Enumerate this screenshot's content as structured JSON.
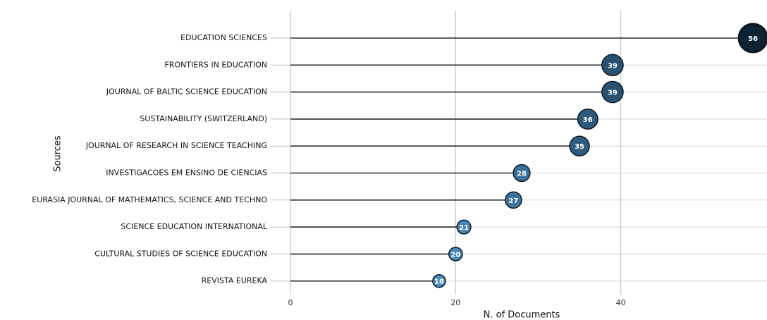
{
  "chart_data": {
    "type": "lollipop",
    "categories": [
      "EDUCATION SCIENCES",
      "FRONTIERS IN EDUCATION",
      "JOURNAL OF BALTIC SCIENCE EDUCATION",
      "SUSTAINABILITY (SWITZERLAND)",
      "JOURNAL OF RESEARCH IN SCIENCE TEACHING",
      "INVESTIGACOES EM ENSINO DE CIENCIAS",
      "EURASIA JOURNAL OF MATHEMATICS, SCIENCE AND TECHNO",
      "SCIENCE EDUCATION INTERNATIONAL",
      "CULTURAL STUDIES OF SCIENCE EDUCATION",
      "REVISTA EUREKA"
    ],
    "values": [
      56,
      39,
      39,
      36,
      35,
      28,
      27,
      21,
      20,
      18
    ],
    "xlabel": "N. of Documents",
    "ylabel": "Sources",
    "xlim": [
      0,
      57.7
    ],
    "xticks": [
      0,
      20,
      40
    ],
    "color_scale": [
      "#4a8cc0",
      "#0d2233"
    ],
    "grid": true
  }
}
